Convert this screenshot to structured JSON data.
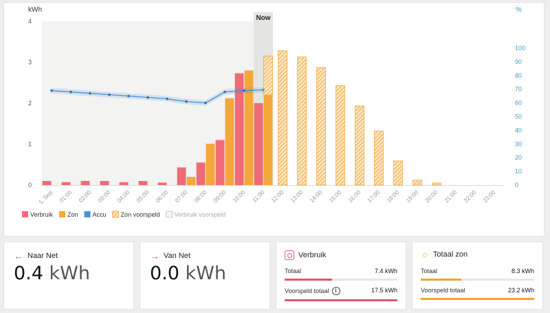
{
  "chart_data": {
    "type": "bar",
    "y_left_label": "kWh",
    "y_right_label": "%",
    "y_left_ticks": [
      "0",
      "1",
      "2",
      "3",
      "4"
    ],
    "y_right_ticks": [
      "0",
      "10",
      "20",
      "30",
      "40",
      "50",
      "60",
      "70",
      "80",
      "90",
      "100"
    ],
    "ylim_left": [
      0,
      4
    ],
    "ylim_right": [
      0,
      100
    ],
    "categories": [
      "1. Sep",
      "01:00",
      "02:00",
      "03:00",
      "04:00",
      "05:00",
      "06:00",
      "07:00",
      "08:00",
      "09:00",
      "10:00",
      "11:00",
      "12:00",
      "13:00",
      "14:00",
      "15:00",
      "16:00",
      "17:00",
      "18:00",
      "19:00",
      "20:00",
      "21:00",
      "22:00",
      "23:00"
    ],
    "now_label": "Now",
    "now_index": 11,
    "series": [
      {
        "name": "Verbruik",
        "color": "#ef6b77",
        "values": [
          0.1,
          0.07,
          0.1,
          0.1,
          0.07,
          0.1,
          0.06,
          0.43,
          0.55,
          1.1,
          2.73,
          2.0,
          null,
          null,
          null,
          null,
          null,
          null,
          null,
          null,
          null,
          null,
          null,
          null
        ]
      },
      {
        "name": "Zon",
        "color": "#f4a73a",
        "values": [
          0,
          0,
          0,
          0,
          0,
          0,
          0,
          0.2,
          1.01,
          2.12,
          2.8,
          2.2,
          null,
          null,
          null,
          null,
          null,
          null,
          null,
          null,
          null,
          null,
          null,
          null
        ]
      },
      {
        "name": "Accu",
        "color": "#4a90d9",
        "axis": "right",
        "values": [
          69,
          68,
          67,
          66,
          65,
          64,
          63,
          61,
          60,
          68,
          69,
          69.5,
          null,
          null,
          null,
          null,
          null,
          null,
          null,
          null,
          null,
          null,
          null,
          null
        ]
      },
      {
        "name": "Zon voorspeld",
        "color": "#f4a73a",
        "values": [
          null,
          null,
          null,
          null,
          null,
          null,
          null,
          null,
          null,
          null,
          null,
          3.15,
          3.28,
          3.13,
          2.87,
          2.43,
          1.93,
          1.32,
          0.59,
          0.12,
          0.05,
          0,
          0,
          0
        ]
      },
      {
        "name": "Verbruik voorspeld",
        "color": "#cccccc",
        "values": [
          null,
          null,
          null,
          null,
          null,
          null,
          null,
          null,
          null,
          null,
          null,
          null,
          null,
          null,
          null,
          null,
          null,
          null,
          null,
          null,
          null,
          null,
          null,
          null
        ]
      }
    ],
    "legend_position": "bottom-left",
    "grid": false
  },
  "cards": {
    "naar_net": {
      "title": "Naar Net",
      "value": "0.4",
      "unit": "kWh"
    },
    "van_net": {
      "title": "Van Net",
      "value": "0.0",
      "unit": "kWh"
    },
    "verbruik": {
      "title": "Verbruik",
      "row1_label": "Totaal",
      "row1_value": "7.4 kWh",
      "row1_fraction": 0.42,
      "row2_label": "Voorspeld totaal",
      "row2_value": "17.5 kWh",
      "row2_fraction": 1.0,
      "color": "#e3566a"
    },
    "totaal_zon": {
      "title": "Totaal zon",
      "row1_label": "Totaal",
      "row1_value": "8.3 kWh",
      "row1_fraction": 0.36,
      "row2_label": "Voorspeld totaal",
      "row2_value": "23.2 kWh",
      "row2_fraction": 1.0,
      "color": "#f0a335"
    }
  },
  "colors": {
    "arrow_naar_net": "#4caf50",
    "arrow_van_net": "#e3566a",
    "right_axis": "#3f9bc6"
  }
}
